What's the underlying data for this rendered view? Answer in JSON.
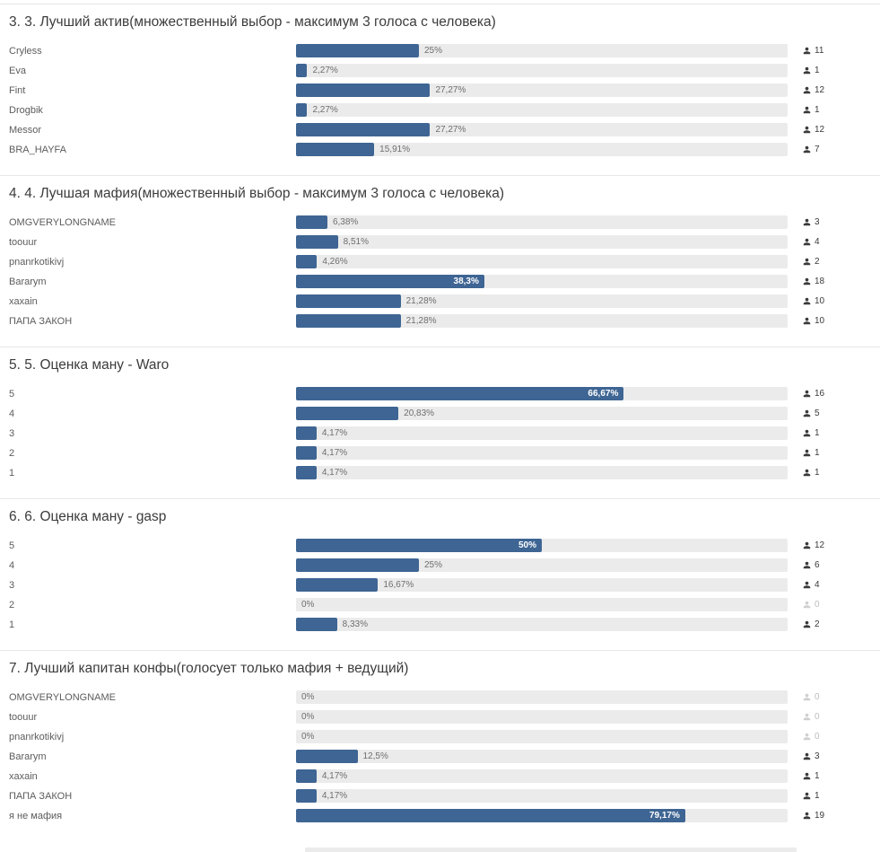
{
  "colors": {
    "bar": "#3e6593",
    "track": "#ebebeb",
    "divider": "#e7e7e7",
    "title_text": "#3c3c3c",
    "option_text": "#5c5c5c",
    "percent_text_outside": "#6e6e6e",
    "percent_text_inside": "#ffffff",
    "count_text": "#3a3a3a",
    "count_text_zero": "#bdbdbd"
  },
  "layout_hints": {
    "orientation": "horizontal",
    "xlim": [
      0,
      100
    ],
    "grid": false,
    "inside_label_threshold_percent": 30
  },
  "chart_data": [
    {
      "type": "bar",
      "title": "3. 3. Лучший актив(множественный выбор - максимум 3 голоса с человека)",
      "categories": [
        "Cryless",
        "Eva",
        "Fint",
        "Drogbik",
        "Messor",
        "BRA_HAYFA"
      ],
      "values": [
        25,
        2.27,
        27.27,
        2.27,
        27.27,
        15.91
      ],
      "value_labels": [
        "25%",
        "2,27%",
        "27,27%",
        "2,27%",
        "27,27%",
        "15,91%"
      ],
      "votes": [
        11,
        1,
        12,
        1,
        12,
        7
      ]
    },
    {
      "type": "bar",
      "title": "4. 4. Лучшая мафия(множественный выбор - максимум 3 голоса с человека)",
      "categories": [
        "OMGVERYLONGNAME",
        "toouur",
        "pnanrkotikivj",
        "Bararym",
        "xaxain",
        "ПАПА ЗАКОН"
      ],
      "values": [
        6.38,
        8.51,
        4.26,
        38.3,
        21.28,
        21.28
      ],
      "value_labels": [
        "6,38%",
        "8,51%",
        "4,26%",
        "38,3%",
        "21,28%",
        "21,28%"
      ],
      "votes": [
        3,
        4,
        2,
        18,
        10,
        10
      ]
    },
    {
      "type": "bar",
      "title": "5. 5. Оценка ману - Waro",
      "categories": [
        "5",
        "4",
        "3",
        "2",
        "1"
      ],
      "values": [
        66.67,
        20.83,
        4.17,
        4.17,
        4.17
      ],
      "value_labels": [
        "66,67%",
        "20,83%",
        "4,17%",
        "4,17%",
        "4,17%"
      ],
      "votes": [
        16,
        5,
        1,
        1,
        1
      ]
    },
    {
      "type": "bar",
      "title": "6. 6. Оценка ману - gasp",
      "categories": [
        "5",
        "4",
        "3",
        "2",
        "1"
      ],
      "values": [
        50,
        25,
        16.67,
        0,
        8.33
      ],
      "value_labels": [
        "50%",
        "25%",
        "16,67%",
        "0%",
        "8,33%"
      ],
      "votes": [
        12,
        6,
        4,
        0,
        2
      ]
    },
    {
      "type": "bar",
      "title": "7. Лучший капитан конфы(голосует только мафия + ведущий)",
      "categories": [
        "OMGVERYLONGNAME",
        "toouur",
        "pnanrkotikivj",
        "Bararym",
        "xaxain",
        "ПАПА ЗАКОН",
        "я не мафия"
      ],
      "values": [
        0,
        0,
        0,
        12.5,
        4.17,
        4.17,
        79.17
      ],
      "value_labels": [
        "0%",
        "0%",
        "0%",
        "12,5%",
        "4,17%",
        "4,17%",
        "79,17%"
      ],
      "votes": [
        0,
        0,
        0,
        3,
        1,
        1,
        19
      ]
    }
  ]
}
